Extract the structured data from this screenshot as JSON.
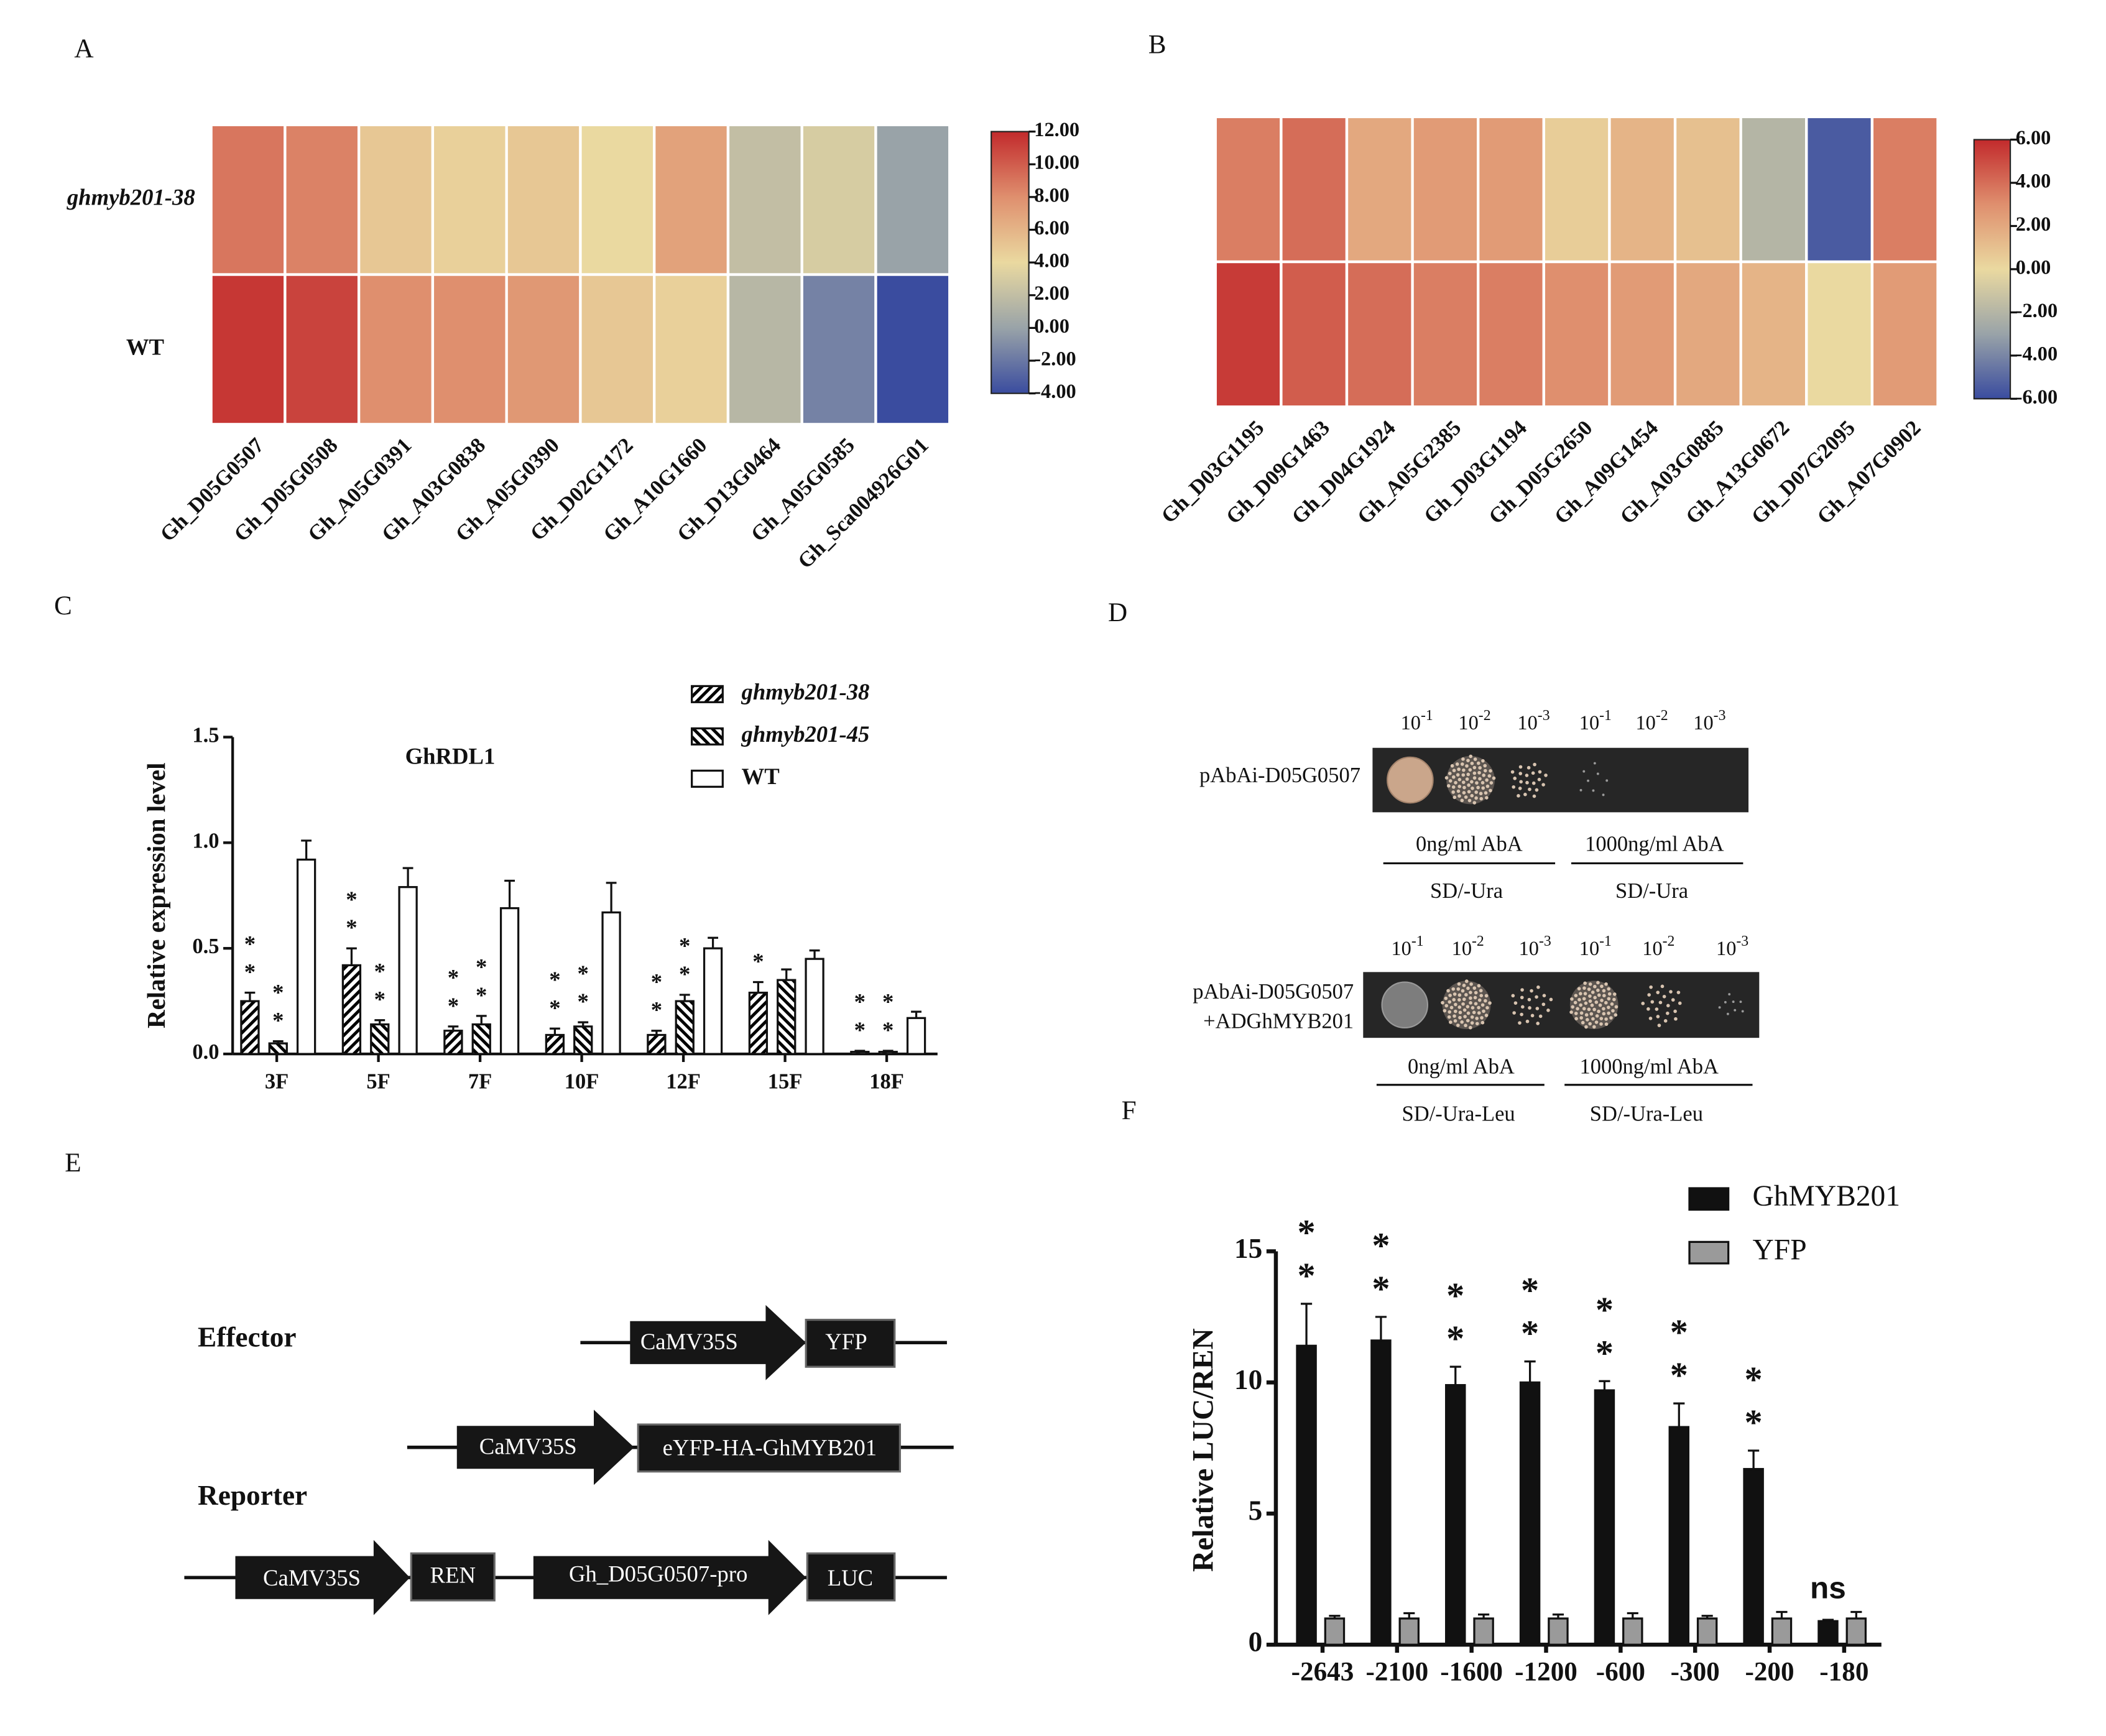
{
  "chart_data": [
    {
      "type": "heatmap",
      "panel": "A",
      "rows": [
        "ghmyb201-38",
        "WT"
      ],
      "columns": [
        "Gh_D05G0507",
        "Gh_D05G0508",
        "Gh_A05G0391",
        "Gh_A03G0838",
        "Gh_A05G0390",
        "Gh_D02G1172",
        "Gh_A10G1660",
        "Gh_D13G0464",
        "Gh_A05G0585",
        "Gh_Sca004926G01"
      ],
      "values": [
        [
          9,
          8.5,
          5,
          4.5,
          5,
          4,
          7,
          2,
          3,
          0
        ],
        [
          11.5,
          11,
          8,
          8,
          7.5,
          5,
          4.5,
          1.5,
          -1.5,
          -4
        ]
      ],
      "clim": [
        -4,
        12
      ],
      "colormap": [
        "#3a4c9f",
        "#99a3a8",
        "#ead9a0",
        "#df8f6e",
        "#c22a2c"
      ],
      "cticks": [
        {
          "value": 12,
          "label": "12.00"
        },
        {
          "value": 10,
          "label": "10.00"
        },
        {
          "value": 8,
          "label": "8.00"
        },
        {
          "value": 6,
          "label": "6.00"
        },
        {
          "value": 4,
          "label": "4.00"
        },
        {
          "value": 2,
          "label": "2.00"
        },
        {
          "value": 0,
          "label": "0.00"
        },
        {
          "value": -2,
          "label": "-2.00"
        },
        {
          "value": -4,
          "label": "-4.00"
        }
      ]
    },
    {
      "type": "heatmap",
      "panel": "B",
      "columns": [
        "Gh_D03G1195",
        "Gh_D09G1463",
        "Gh_D04G1924",
        "Gh_A05G2385",
        "Gh_D03G1194",
        "Gh_D05G2650",
        "Gh_A09G1454",
        "Gh_A03G0885",
        "Gh_A13G0672",
        "Gh_D07G2095",
        "Gh_A07G0902"
      ],
      "values": [
        [
          3.5,
          4,
          2,
          2.5,
          2.5,
          0.5,
          1.5,
          1,
          -2,
          -5.5,
          3.5
        ],
        [
          5.5,
          4.5,
          4,
          3.5,
          3.5,
          3,
          2.5,
          2,
          1.5,
          0,
          2.5
        ]
      ],
      "clim": [
        -6,
        6
      ],
      "colormap": [
        "#3a4c9f",
        "#99a3a8",
        "#ead9a0",
        "#df8f6e",
        "#c22a2c"
      ],
      "cticks": [
        {
          "value": 6,
          "label": "6.00"
        },
        {
          "value": 4,
          "label": "4.00"
        },
        {
          "value": 2,
          "label": "2.00"
        },
        {
          "value": 0,
          "label": "0.00"
        },
        {
          "value": -2,
          "label": "-2.00"
        },
        {
          "value": -4,
          "label": "-4.00"
        },
        {
          "value": -6,
          "label": "-6.00"
        }
      ]
    },
    {
      "type": "bar",
      "panel": "C",
      "subtitle": "GhRDL1",
      "y_label": "Relative expression level",
      "categories": [
        "3F",
        "5F",
        "7F",
        "10F",
        "12F",
        "15F",
        "18F"
      ],
      "series": [
        {
          "name": "ghmyb201-38",
          "color": "#000000",
          "hatch": "/",
          "values": [
            0.25,
            0.42,
            0.11,
            0.09,
            0.09,
            0.29,
            0.01
          ],
          "errors": [
            0.04,
            0.08,
            0.02,
            0.03,
            0.02,
            0.05,
            0.005
          ],
          "significance": [
            "**",
            "**",
            "**",
            "**",
            "**",
            "*",
            "**"
          ]
        },
        {
          "name": "ghmyb201-45",
          "color": "#000000",
          "hatch": "\\",
          "values": [
            0.05,
            0.14,
            0.14,
            0.13,
            0.25,
            0.35,
            0.01
          ],
          "errors": [
            0.01,
            0.02,
            0.04,
            0.02,
            0.03,
            0.05,
            0.005
          ],
          "significance": [
            "**",
            "**",
            "**",
            "**",
            "**",
            null,
            "**"
          ]
        },
        {
          "name": "WT",
          "color": "#ffffff",
          "values": [
            0.92,
            0.79,
            0.69,
            0.67,
            0.5,
            0.45,
            0.17
          ],
          "errors": [
            0.09,
            0.09,
            0.13,
            0.14,
            0.05,
            0.04,
            0.03
          ]
        }
      ],
      "ylim": [
        0,
        1.5
      ],
      "yticks": [
        {
          "value": 0,
          "label": "0.0"
        },
        {
          "value": 0.5,
          "label": "0.5"
        },
        {
          "value": 1,
          "label": "1.0"
        },
        {
          "value": 1.5,
          "label": "1.5"
        }
      ]
    },
    {
      "type": "bar",
      "panel": "F",
      "y_label": "Relative LUC/REN",
      "categories": [
        "-2643",
        "-2100",
        "-1600",
        "-1200",
        "-600",
        "-300",
        "-200",
        "-180"
      ],
      "series": [
        {
          "name": "GhMYB201",
          "color": "#111111",
          "values": [
            11.4,
            11.6,
            9.9,
            10,
            9.7,
            8.3,
            6.7,
            0.9
          ],
          "errors": [
            1.6,
            0.9,
            0.7,
            0.8,
            0.35,
            0.9,
            0.7,
            0.05
          ],
          "significance": [
            "**",
            "**",
            "**",
            "**",
            "**",
            "**",
            "**",
            "ns"
          ]
        },
        {
          "name": "YFP",
          "color": "#9a9a9a",
          "values": [
            1,
            1,
            1,
            1,
            1,
            1,
            1,
            1
          ],
          "errors": [
            0.1,
            0.2,
            0.15,
            0.15,
            0.2,
            0.1,
            0.25,
            0.25
          ]
        }
      ],
      "ylim": [
        0,
        15
      ],
      "yticks": [
        0,
        5,
        10,
        15
      ]
    }
  ],
  "yeast_assay": {
    "panel": "D",
    "dilution_base": "10",
    "dilution_exponents": [
      "-1",
      "-2",
      "-3"
    ],
    "assays": [
      {
        "construct": [
          "pAbAi-D05G0507"
        ],
        "conditions": [
          "0ng/ml AbA",
          "1000ng/ml AbA"
        ],
        "media": [
          "SD/-Ura",
          "SD/-Ura"
        ]
      },
      {
        "construct": [
          "pAbAi-D05G0507",
          "+ADGhMYB201"
        ],
        "conditions": [
          "0ng/ml AbA",
          "1000ng/ml AbA"
        ],
        "media": [
          "SD/-Ura-Leu",
          "SD/-Ura-Leu"
        ]
      }
    ]
  },
  "constructs_diagram": {
    "panel": "E",
    "sections": [
      "Effector",
      "Reporter"
    ],
    "constructs": [
      [
        "CaMV35S",
        "YFP"
      ],
      [
        "CaMV35S",
        "eYFP-HA-GhMYB201"
      ],
      [
        "CaMV35S",
        "REN",
        "Gh_D05G0507-pro",
        "LUC"
      ]
    ]
  }
}
